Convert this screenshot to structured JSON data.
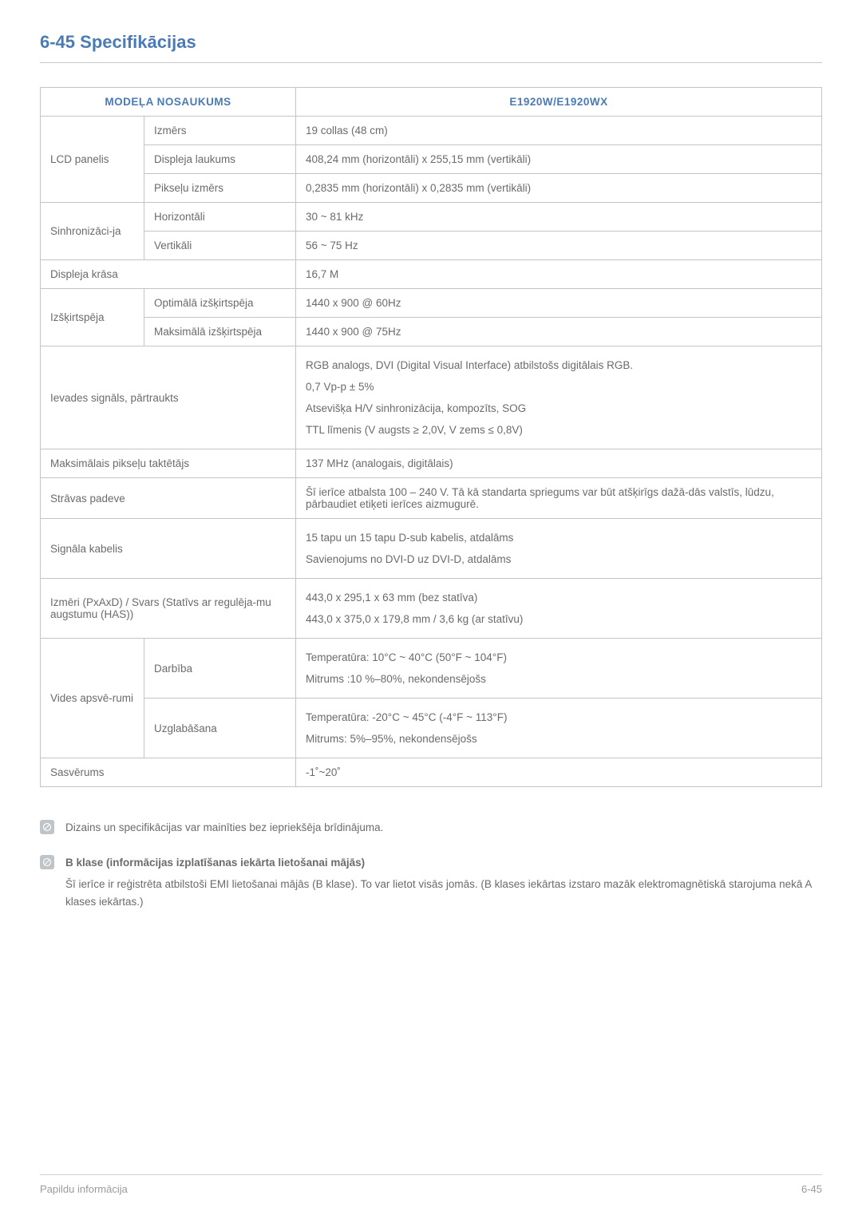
{
  "heading": "6-45  Specifikācijas",
  "table": {
    "header_left": "MODEĻA NOSAUKUMS",
    "header_right": "E1920W/E1920WX",
    "header_color": "#4a7bb5",
    "border_color": "#c4c4c4",
    "text_color": "#6b6b6b",
    "rows": [
      {
        "c1": "LCD panelis",
        "c2": "Izmērs",
        "c3": "19 collas (48 cm)",
        "rowspan1": 3
      },
      {
        "c2": "Displeja laukums",
        "c3": "408,24 mm (horizontāli) x 255,15 mm (vertikāli)"
      },
      {
        "c2": "Pikseļu izmērs",
        "c3": "0,2835 mm (horizontāli) x 0,2835 mm (vertikāli)"
      },
      {
        "c1": "Sinhronizāci-ja",
        "c2": "Horizontāli",
        "c3": "30 ~ 81 kHz",
        "rowspan1": 2
      },
      {
        "c2": "Vertikāli",
        "c3": "56 ~ 75 Hz"
      },
      {
        "c12": "Displeja krāsa",
        "c3": "16,7 M"
      },
      {
        "c1": "Izšķirtspēja",
        "c2": "Optimālā izšķirtspēja",
        "c3": "1440 x 900 @ 60Hz",
        "rowspan1": 2
      },
      {
        "c2": "Maksimālā izšķirtspēja",
        "c3": "1440 x 900 @ 75Hz"
      },
      {
        "c12": "Ievades signāls, pārtraukts",
        "c3": "RGB analogs, DVI (Digital Visual Interface) atbilstošs digitālais RGB.\n0,7 Vp-p ± 5%\nAtsevišķa H/V sinhronizācija, kompozīts, SOG\nTTL līmenis (V augsts ≥ 2,0V, V zems ≤ 0,8V)",
        "multiline": true
      },
      {
        "c12": "Maksimālais pikseļu taktētājs",
        "c3": "137 MHz (analogais, digitālais)"
      },
      {
        "c12": "Strāvas padeve",
        "c3": "Šī ierīce atbalsta 100 – 240 V. Tā kā standarta spriegums var būt atšķirīgs dažā-dās valstīs, lūdzu, pārbaudiet etiķeti ierīces aizmugurē."
      },
      {
        "c12": "Signāla kabelis",
        "c3": "15 tapu un 15 tapu D-sub kabelis, atdalāms\nSavienojums no DVI-D uz DVI-D, atdalāms",
        "multiline": true
      },
      {
        "c12": "Izmēri (PxAxD) / Svars (Statīvs ar regulēja-mu augstumu (HAS))",
        "c3": "443,0 x 295,1 x 63 mm (bez statīva)\n443,0 x 375,0 x 179,8 mm / 3,6 kg (ar statīvu)",
        "multiline": true
      },
      {
        "c1": "Vides apsvē-rumi",
        "c2": "Darbība",
        "c3": "Temperatūra: 10°C ~ 40°C (50°F ~ 104°F)\nMitrums :10 %–80%, nekondensējošs",
        "rowspan1": 2,
        "multiline": true
      },
      {
        "c2": "Uzglabāšana",
        "c3": "Temperatūra: -20°C ~ 45°C (-4°F ~ 113°F)\nMitrums: 5%–95%, nekondensējošs",
        "multiline": true
      },
      {
        "c12": "Sasvērums",
        "c3": "-1˚~20˚"
      }
    ]
  },
  "notes": [
    {
      "bold": "",
      "text": "Dizains un specifikācijas var mainīties bez iepriekšēja brīdinājuma."
    },
    {
      "bold": "B klase (informācijas izplatīšanas iekārta lietošanai mājās)",
      "text": "Šī ierīce ir reģistrēta atbilstoši EMI lietošanai mājās (B klase). To var lietot visās jomās. (B klases iekārtas izstaro mazāk elektromagnētiskā starojuma nekā A klases iekārtas.)"
    }
  ],
  "footer_left": "Papildu informācija",
  "footer_right": "6-45"
}
